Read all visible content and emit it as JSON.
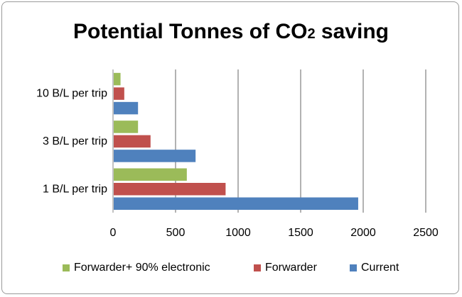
{
  "chart_data": {
    "type": "bar",
    "orientation": "horizontal",
    "title_main": "Potential Tonnes of CO",
    "title_sub": "2",
    "title_end": " saving",
    "categories": [
      "1 B/L per trip",
      "3 B/L per trip",
      "10 B/L per trip"
    ],
    "series": [
      {
        "name": "Current",
        "color": "#4f81bd",
        "values": [
          1960,
          660,
          200
        ]
      },
      {
        "name": "Forwarder",
        "color": "#c0504d",
        "values": [
          900,
          300,
          90
        ]
      },
      {
        "name": "Forwarder+ 90% electronic",
        "color": "#9bbb59",
        "values": [
          590,
          200,
          60
        ]
      }
    ],
    "xlim": [
      0,
      2500
    ],
    "xticks": [
      "0",
      "500",
      "1000",
      "1500",
      "2000",
      "2500"
    ],
    "grid": true,
    "legend_position": "bottom",
    "legend_order": [
      "Forwarder+ 90% electronic",
      "Forwarder",
      "Current"
    ]
  }
}
